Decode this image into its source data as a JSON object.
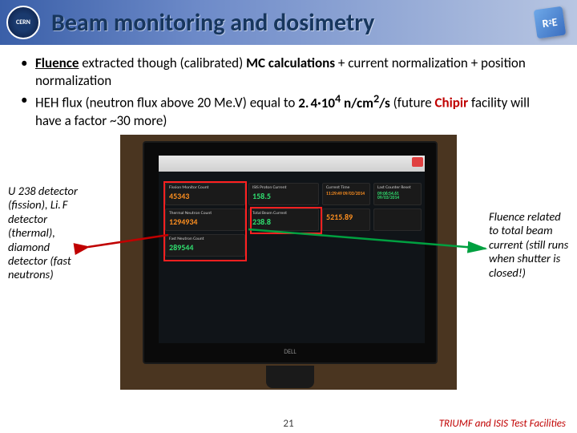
{
  "header": {
    "title": "Beam monitoring and dosimetry",
    "cern_label": "CERN",
    "r2e_label": "R E",
    "r2e_sup": "2"
  },
  "bullets": {
    "line1_a": "Fluence",
    "line1_b": " extracted though (calibrated) ",
    "line1_c": "MC calculations",
    "line1_d": " + current normalization + position normalization",
    "line2_a": "HEH flux (neutron flux above 20 Me.V) equal to ",
    "line2_b": "2. 4·10",
    "line2_sup": "4",
    "line2_c": " n/cm",
    "line2_sup2": "2",
    "line2_d": "/s",
    "line2_e": " (future ",
    "line2_f": "Chipir",
    "line2_g": " facility will have a factor ~30 more)"
  },
  "left_note": "U 238 detector (fission), Li. F detector (thermal), diamond detector (fast neutrons)",
  "right_note": "Fluence related to total beam current (still runs when shutter is closed!)",
  "monitor": {
    "panels": [
      {
        "label": "Fission Monitor Count",
        "val": "45343",
        "cls": "val-orange"
      },
      {
        "label": "ISIS Proton Current",
        "val": "158.5",
        "cls": "val-green"
      },
      {
        "label": "Current Time",
        "val": "11:29:49\n09/03/2014",
        "cls": "val-orange",
        "small": true
      },
      {
        "label": "Last Counter Reset",
        "val": "09:06:54.61\n09/03/2014",
        "cls": "val-green",
        "small": true
      },
      {
        "label": "Thermal Neutron Count",
        "val": "1294934",
        "cls": "val-orange"
      },
      {
        "label": "Total Beam Current",
        "val": "238.8",
        "cls": "val-green"
      },
      {
        "label": "",
        "val": "5215.89",
        "cls": "val-orange"
      },
      {
        "label": "",
        "val": "",
        "cls": ""
      },
      {
        "label": "Fast Neutron Count",
        "val": "289544",
        "cls": "val-green"
      }
    ],
    "brand": "DELL"
  },
  "footer": {
    "page": "21",
    "right": "TRIUMF and ISIS Test Facilities"
  },
  "colors": {
    "accent": "#c00000",
    "title": "#17365d"
  }
}
